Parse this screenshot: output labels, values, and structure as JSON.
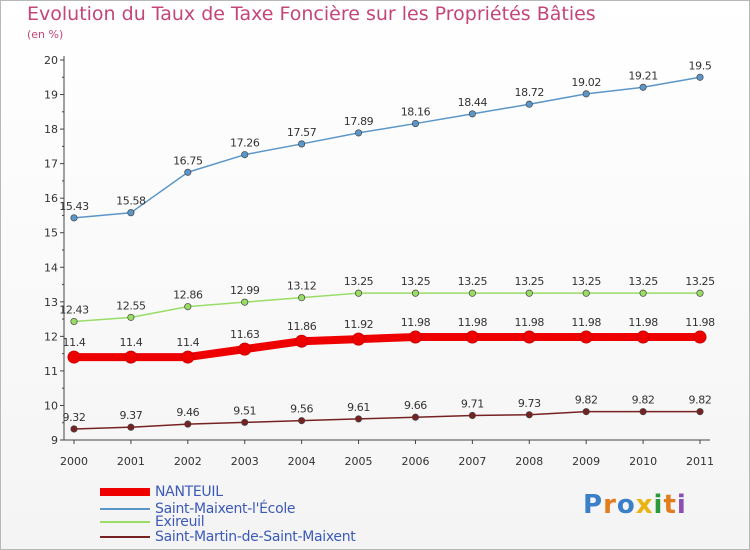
{
  "chart_data": {
    "type": "line",
    "title": "Evolution du Taux de Taxe Foncière sur les Propriétés Bâties",
    "subtitle": "(en %)",
    "x": [
      "2000",
      "2001",
      "2002",
      "2003",
      "2004",
      "2005",
      "2006",
      "2007",
      "2008",
      "2009",
      "2010",
      "2011"
    ],
    "yticks": [
      "9",
      "10",
      "11",
      "12",
      "13",
      "14",
      "15",
      "16",
      "17",
      "18",
      "19",
      "20"
    ],
    "ylim": [
      9,
      20
    ],
    "grid": false,
    "legend_position": "bottom-left",
    "series": [
      {
        "name": "NANTEUIL",
        "color": "#ee0000",
        "values": [
          11.4,
          11.4,
          11.4,
          11.63,
          11.86,
          11.92,
          11.98,
          11.98,
          11.98,
          11.98,
          11.98,
          11.98
        ],
        "labels": [
          "11.4",
          "11.4",
          "11.4",
          "11.63",
          "11.86",
          "11.92",
          "11.98",
          "11.98",
          "11.98",
          "11.98",
          "11.98",
          "11.98"
        ]
      },
      {
        "name": "Saint-Maixent-l'École",
        "color": "#5b96c8",
        "values": [
          15.43,
          15.58,
          16.75,
          17.26,
          17.57,
          17.89,
          18.16,
          18.44,
          18.72,
          19.02,
          19.21,
          19.5
        ],
        "labels": [
          "15.43",
          "15.58",
          "16.75",
          "17.26",
          "17.57",
          "17.89",
          "18.16",
          "18.44",
          "18.72",
          "19.02",
          "19.21",
          "19.5"
        ]
      },
      {
        "name": "Exireuil",
        "color": "#99dd66",
        "values": [
          12.43,
          12.55,
          12.86,
          12.99,
          13.12,
          13.25,
          13.25,
          13.25,
          13.25,
          13.25,
          13.25,
          13.25
        ],
        "labels": [
          "12.43",
          "12.55",
          "12.86",
          "12.99",
          "13.12",
          "13.25",
          "13.25",
          "13.25",
          "13.25",
          "13.25",
          "13.25",
          "13.25"
        ]
      },
      {
        "name": "Saint-Martin-de-Saint-Maixent",
        "color": "#772222",
        "values": [
          9.32,
          9.37,
          9.46,
          9.51,
          9.56,
          9.61,
          9.66,
          9.71,
          9.73,
          9.82,
          9.82,
          9.82
        ],
        "labels": [
          "9.32",
          "9.37",
          "9.46",
          "9.51",
          "9.56",
          "9.61",
          "9.66",
          "9.71",
          "9.73",
          "9.82",
          "9.82",
          "9.82"
        ]
      }
    ]
  },
  "logo": {
    "text": "Proxiti",
    "letters": [
      "P",
      "r",
      "o",
      "x",
      "i",
      "t",
      "i"
    ],
    "colors": [
      "#3a7fc8",
      "#e27d1e",
      "#3a7fc8",
      "#e8b313",
      "#2a9a3a",
      "#e27d1e",
      "#8a4fb0"
    ]
  }
}
